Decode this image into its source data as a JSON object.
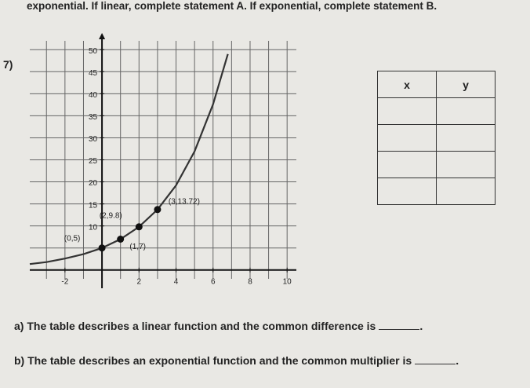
{
  "header": {
    "instructions": "exponential. If linear, complete statement A. If exponential, complete statement B."
  },
  "problem": {
    "number": "7)"
  },
  "chart_data": {
    "type": "line",
    "xlim": [
      -3.9,
      10.5
    ],
    "ylim": [
      -2,
      52
    ],
    "xticks": [
      -2,
      2,
      4,
      6,
      8,
      10
    ],
    "yticks": [
      10,
      15,
      20,
      25,
      30,
      35,
      40,
      45,
      50
    ],
    "xgrid": [
      -3,
      -2,
      -1,
      0,
      1,
      2,
      3,
      4,
      5,
      6,
      7,
      8,
      9,
      10
    ],
    "ygrid": [
      0,
      5,
      10,
      15,
      20,
      25,
      30,
      35,
      40,
      45,
      50
    ],
    "grid": true,
    "series": [
      {
        "name": "curve",
        "color": "#333333",
        "x": [
          -3.9,
          -3,
          -2,
          -1,
          0,
          1,
          2,
          3,
          4,
          5,
          6,
          6.8
        ],
        "values": [
          1.35,
          1.8,
          2.6,
          3.6,
          5,
          7,
          9.8,
          13.72,
          19.2,
          26.9,
          37.6,
          49
        ]
      },
      {
        "name": "points",
        "color": "#111111",
        "x": [
          0,
          1,
          2,
          3
        ],
        "values": [
          5,
          7,
          9.8,
          13.72
        ],
        "value_labels": [
          "(0,5)",
          "(1,7)",
          "(2,9.8)",
          "(3,13.72)"
        ]
      }
    ]
  },
  "table": {
    "header": [
      "x",
      "y"
    ]
  },
  "questions": [
    "a)  The table describes a linear function and the common difference is",
    "b)  The table describes an exponential function and the common multiplier is"
  ],
  "questions_end": [
    ".",
    "."
  ]
}
